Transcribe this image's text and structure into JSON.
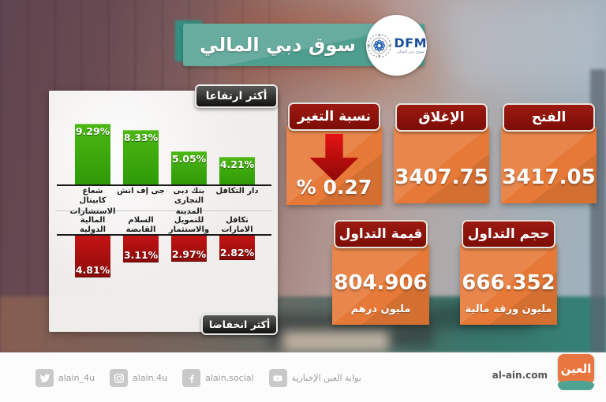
{
  "header": {
    "title": "سوق دبي المالي",
    "logo": {
      "abbr": "DFM",
      "name": "سوق دبي المالي"
    }
  },
  "panel": {
    "gainers_badge": "أكثر ارتفاعا",
    "losers_badge": "أكثر انخفاضا"
  },
  "chart_data": [
    {
      "type": "bar",
      "title": "أكثر ارتفاعا",
      "categories": [
        "شعاع كابيتال",
        "جى إف اتش",
        "بنك دبى التجارى",
        "دار التكافل"
      ],
      "values": [
        9.29,
        8.33,
        5.05,
        4.21
      ],
      "labels": [
        "9.29%",
        "8.33%",
        "5.05%",
        "4.21%"
      ],
      "bar_color": "#3aa70d",
      "direction": "up",
      "legend": "off",
      "grid": "off"
    },
    {
      "type": "bar",
      "title": "أكثر انخفاضا",
      "categories": [
        "الاستشارات المالية الدولية",
        "السلام القابضة",
        "المدينة للتمويل والاستثمار",
        "تكافل الامارات"
      ],
      "values": [
        4.81,
        3.11,
        2.97,
        2.82
      ],
      "labels": [
        "4.81%",
        "3.11%",
        "2.97%",
        "2.82%"
      ],
      "bar_color": "#b01010",
      "direction": "down",
      "legend": "off",
      "grid": "off"
    }
  ],
  "stats": {
    "change": {
      "label": "نسبة التغير",
      "value": "% 0.27",
      "trend": "down",
      "arrow_color": "#c50f0f"
    },
    "close": {
      "label": "الإغلاق",
      "value": "3407.75"
    },
    "open": {
      "label": "الفتح",
      "value": "3417.05"
    },
    "trade_value": {
      "label": "قيمة التداول",
      "value": "804.906",
      "unit": "مليون درهم"
    },
    "trade_volume": {
      "label": "حجم التداول",
      "value": "666.352",
      "unit": "مليون ورقة مالية"
    }
  },
  "footer": {
    "social": [
      {
        "icon": "twitter-icon",
        "handle": "alain_4u"
      },
      {
        "icon": "instagram-icon",
        "handle": "alain.4u"
      },
      {
        "icon": "facebook-icon",
        "handle": "alain.social"
      },
      {
        "icon": "youtube-icon",
        "handle": "بوابة العين الإخبارية"
      }
    ],
    "website": "al-ain.com",
    "brand": "العين"
  },
  "colors": {
    "header_teal": "#4f9f90",
    "box_orange": "#e67937",
    "box_header_red": "#8e1410",
    "gainer_green": "#3aa70d",
    "loser_red": "#b01010"
  }
}
